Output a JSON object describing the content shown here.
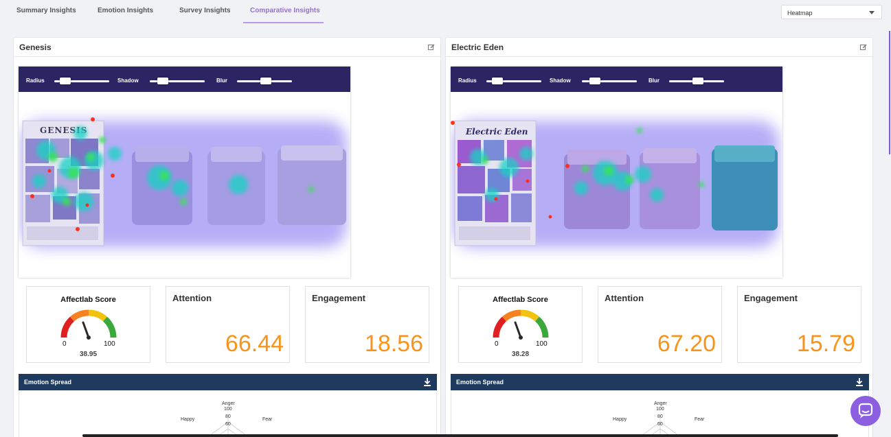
{
  "tabs": [
    {
      "label": "Summary Insights",
      "active": false
    },
    {
      "label": "Emotion Insights",
      "active": false
    },
    {
      "label": "Survey Insights",
      "active": false
    },
    {
      "label": "Comparative Insights",
      "active": true
    }
  ],
  "view_select": {
    "value": "Heatmap"
  },
  "controls": {
    "radius_label": "Radius",
    "shadow_label": "Shadow",
    "blur_label": "Blur"
  },
  "labels": {
    "affectlab_score": "Affectlab Score",
    "attention": "Attention",
    "engagement": "Engagement",
    "gauge_min": "0",
    "gauge_max": "100",
    "emotion_spread": "Emotion Spread"
  },
  "radar": {
    "axes": [
      "Anger",
      "Fear",
      "Happy"
    ],
    "ticks": [
      "100",
      "80",
      "60"
    ]
  },
  "panels": [
    {
      "title": "Genesis",
      "image_text": "GENESIS",
      "affectlab_score": "38.95",
      "attention": "66.44",
      "engagement": "18.56"
    },
    {
      "title": "Electric Eden",
      "image_text": "Electric Eden",
      "affectlab_score": "38.28",
      "attention": "67.20",
      "engagement": "15.79"
    }
  ],
  "colors": {
    "accent": "#9b6bdc",
    "heat_bar": "#2b2563",
    "emotion_bar": "#1f3a5f",
    "metric_value": "#f7941d",
    "chat": "#8b5fe0"
  }
}
